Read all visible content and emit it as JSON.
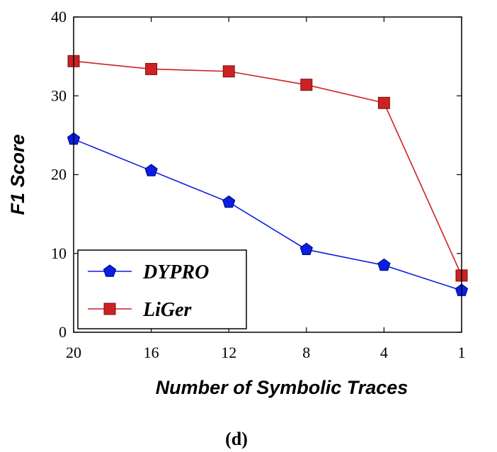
{
  "chart_data": {
    "type": "line",
    "categories": [
      "20",
      "16",
      "12",
      "8",
      "4",
      "1"
    ],
    "xlabel": "Number of Symbolic Traces",
    "ylabel": "F1 Score",
    "ylim": [
      0,
      40
    ],
    "yticks": [
      "0",
      "10",
      "20",
      "30",
      "40"
    ],
    "grid": false,
    "legend_position": "bottom-left",
    "caption": "(d)",
    "series": [
      {
        "name": "DYPRO",
        "color": "#0a1fe0",
        "marker": "pentagon",
        "values": [
          24.5,
          20.5,
          16.5,
          10.5,
          8.5,
          5.3
        ]
      },
      {
        "name": "LiGer",
        "color": "#cc2222",
        "marker": "square",
        "values": [
          34.4,
          33.4,
          33.1,
          31.4,
          29.1,
          7.2
        ]
      }
    ]
  }
}
